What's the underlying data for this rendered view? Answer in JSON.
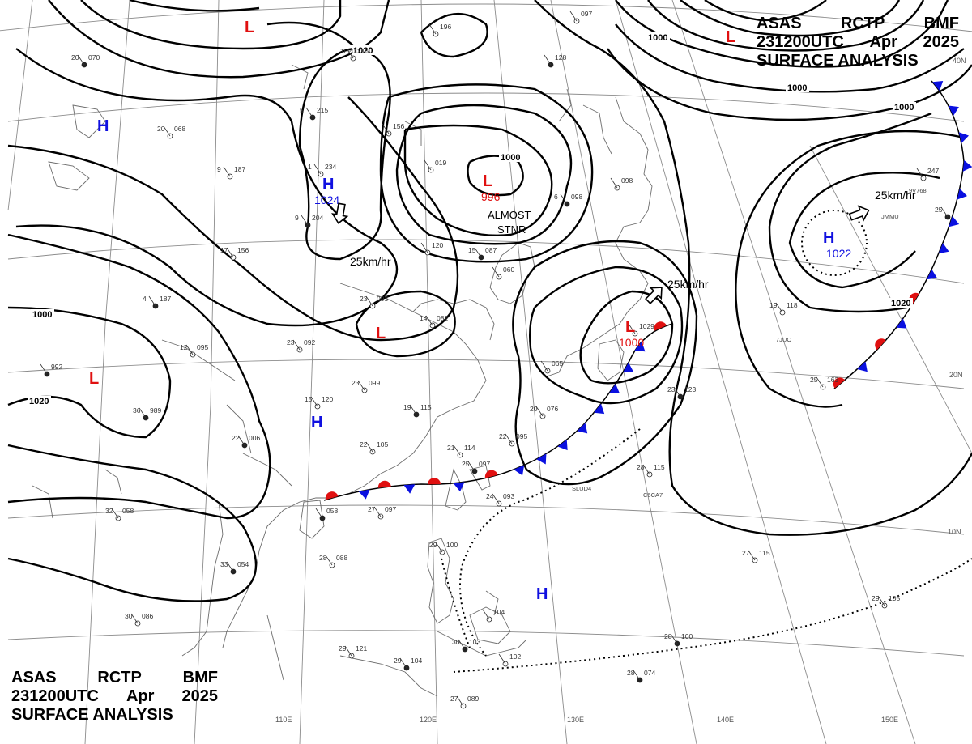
{
  "header": {
    "line1": [
      "ASAS",
      "RCTP",
      "BMF"
    ],
    "line2": [
      "231200UTC",
      "Apr",
      "2025"
    ],
    "line3": "SURFACE ANALYSIS"
  },
  "longitudes": [
    "110E",
    "120E",
    "130E",
    "140E",
    "150E"
  ],
  "latitudes": [
    "40N",
    "20N",
    "10N"
  ],
  "isobar_labels": [
    "1020",
    "1000",
    "1000",
    "1000",
    "1020",
    "1000",
    "1020",
    "1000"
  ],
  "pressure_systems": [
    {
      "type": "H",
      "value": "1024"
    },
    {
      "type": "H",
      "value": "1022"
    },
    {
      "type": "L",
      "value": "996"
    },
    {
      "type": "L",
      "value": "1000"
    },
    {
      "type": "L",
      "value": ""
    },
    {
      "type": "L",
      "value": ""
    },
    {
      "type": "L",
      "value": ""
    },
    {
      "type": "L",
      "value": ""
    },
    {
      "type": "H",
      "value": ""
    },
    {
      "type": "H",
      "value": ""
    },
    {
      "type": "H",
      "value": ""
    }
  ],
  "motion_labels": [
    "25km/hr",
    "25km/hr",
    "25km/hr"
  ],
  "annotation_lines": [
    "ALMOST",
    "STNR"
  ],
  "stations": [
    {
      "t": "20",
      "p": "070"
    },
    {
      "t": "20",
      "p": "068"
    },
    {
      "t": "9",
      "p": "187"
    },
    {
      "t": "5",
      "p": "215"
    },
    {
      "t": "1020",
      "p": "215"
    },
    {
      "t": "",
      "p": "196"
    },
    {
      "t": "",
      "p": "128"
    },
    {
      "t": "",
      "p": "097"
    },
    {
      "t": "1",
      "p": "234"
    },
    {
      "t": "9",
      "p": "204"
    },
    {
      "t": "",
      "p": "156"
    },
    {
      "t": "",
      "p": "019"
    },
    {
      "t": "6",
      "p": "098"
    },
    {
      "t": "",
      "p": "098"
    },
    {
      "t": "",
      "p": "120"
    },
    {
      "t": "15",
      "p": "087"
    },
    {
      "t": "",
      "p": "060"
    },
    {
      "t": "17",
      "p": "156"
    },
    {
      "t": "4",
      "p": "187"
    },
    {
      "t": "23",
      "p": "093"
    },
    {
      "t": "14",
      "p": "082"
    },
    {
      "t": "",
      "p": "992"
    },
    {
      "t": "12",
      "p": "095"
    },
    {
      "t": "23",
      "p": "092"
    },
    {
      "t": "36",
      "p": "989"
    },
    {
      "t": "15",
      "p": "120"
    },
    {
      "t": "23",
      "p": "099"
    },
    {
      "t": "19",
      "p": "115"
    },
    {
      "t": "20",
      "p": "076"
    },
    {
      "t": "22",
      "p": "095"
    },
    {
      "t": "22",
      "p": "006"
    },
    {
      "t": "22",
      "p": "105"
    },
    {
      "t": "21",
      "p": "114"
    },
    {
      "t": "25",
      "p": "097"
    },
    {
      "t": "24",
      "p": "093"
    },
    {
      "t": "27",
      "p": "097"
    },
    {
      "t": "",
      "p": "058"
    },
    {
      "t": "32",
      "p": "058"
    },
    {
      "t": "28",
      "p": "088"
    },
    {
      "t": "33",
      "p": "054"
    },
    {
      "t": "30",
      "p": "086"
    },
    {
      "t": "29",
      "p": "121"
    },
    {
      "t": "29",
      "p": "104"
    },
    {
      "t": "29",
      "p": "100"
    },
    {
      "t": "27",
      "p": "089"
    },
    {
      "t": "30",
      "p": "103"
    },
    {
      "t": "",
      "p": "104"
    },
    {
      "t": "",
      "p": "102"
    },
    {
      "t": "28",
      "p": "074"
    },
    {
      "t": "27",
      "p": "115"
    },
    {
      "t": "29",
      "p": "105"
    },
    {
      "t": "28",
      "p": "100"
    },
    {
      "t": "28",
      "p": "115"
    },
    {
      "t": "25",
      "p": "163"
    },
    {
      "t": "23",
      "p": "123"
    },
    {
      "t": "19",
      "p": "118"
    },
    {
      "t": "",
      "p": "247"
    },
    {
      "t": "25",
      "p": ""
    },
    {
      "t": "",
      "p": "1029"
    },
    {
      "t": "",
      "p": "065"
    }
  ],
  "ship_ids": [
    "JMMU",
    "9V768",
    "7JUO",
    "C6CA7",
    "SLUD4"
  ],
  "colors": {
    "high": "#1010e0",
    "low": "#e01010",
    "cold_front": "#0a10e0",
    "warm_front": "#e01010",
    "isobar": "#000000",
    "coast": "#6c6c6c",
    "grid": "#8c8c8c"
  }
}
